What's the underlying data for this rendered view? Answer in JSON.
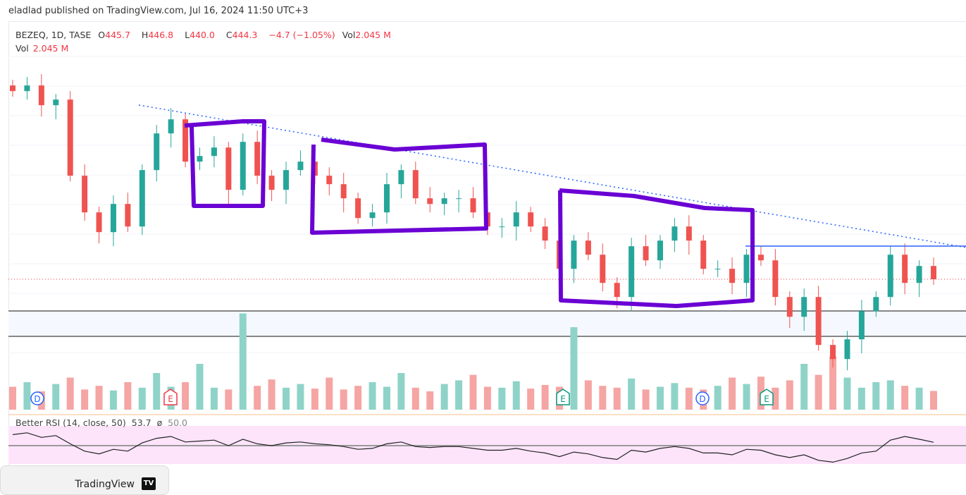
{
  "publish_line": "eladlad published on TradingView.com, Jul 16, 2024 11:50 UTC+3",
  "legend": {
    "symbol": "BEZEQ, 1D, TASE",
    "o_label": "O",
    "open": "445.7",
    "h_label": "H",
    "high": "446.8",
    "l_label": "L",
    "low": "440.0",
    "c_label": "C",
    "close": "444.3",
    "change": "−4.7 (−1.05%)",
    "vol_label": "Vol",
    "vol": "2.045 M",
    "vol2_label": "Vol",
    "vol2": "2.045 M"
  },
  "rsi_legend": {
    "name": "Better RSI (14, close, 50)",
    "value": "53.7",
    "sym": "ø",
    "mid": "50.0"
  },
  "events": [
    {
      "label": "D",
      "color": "#2962ff"
    },
    {
      "label": "E",
      "color": "#f23645"
    },
    {
      "label": "E",
      "color": "#089981"
    },
    {
      "label": "D",
      "color": "#2962ff"
    },
    {
      "label": "E",
      "color": "#089981"
    }
  ],
  "footer": {
    "brand": "TradingView",
    "logo": "TV"
  },
  "colors": {
    "up": "#26a69a",
    "down": "#ef5350",
    "annotation": "#6a00d4",
    "trendline": "#2962ff"
  },
  "chart_data": {
    "type": "candlestick",
    "last_close": 444.3,
    "closes": [
      511,
      513,
      506,
      508,
      481,
      468,
      461,
      471,
      463,
      483,
      496,
      501,
      486,
      488,
      491,
      476,
      493,
      481,
      476,
      483,
      486,
      481,
      478,
      473,
      466,
      468,
      478,
      483,
      473,
      471,
      473,
      473,
      468,
      463,
      463,
      468,
      463,
      458,
      448,
      458,
      453,
      443,
      438,
      456,
      451,
      458,
      463,
      458,
      448,
      448,
      443,
      453,
      451,
      438,
      431,
      438,
      421,
      416,
      423,
      433,
      438,
      453,
      443,
      449,
      444.3
    ],
    "volume_m": [
      2.5,
      3,
      2,
      2.8,
      3.5,
      2.2,
      2.6,
      2.1,
      3,
      2.4,
      4,
      2.5,
      3,
      5,
      2.4,
      2.2,
      10.5,
      2.6,
      3.3,
      2.4,
      2.8,
      2.3,
      3.5,
      2.2,
      2.6,
      3,
      2.5,
      4,
      2.4,
      2,
      2.8,
      3.2,
      3.8,
      2.5,
      2.4,
      3.1,
      2.3,
      2.7,
      2.5,
      9,
      3.2,
      2.6,
      2.4,
      3.4,
      2.2,
      2.5,
      2.9,
      2.4,
      2.2,
      2.6,
      3.5,
      2.8,
      3.6,
      2.4,
      3.2,
      5,
      3.8,
      5.8,
      3.5,
      2.4,
      3,
      3.2,
      2.6,
      2.4,
      2.045
    ],
    "rsi": [
      62,
      64,
      59,
      61,
      52,
      44,
      41,
      46,
      44,
      53,
      58,
      60,
      54,
      55,
      56,
      50,
      57,
      52,
      50,
      53,
      54,
      52,
      51,
      49,
      46,
      47,
      52,
      54,
      49,
      48,
      49,
      49,
      47,
      45,
      45,
      47,
      44,
      42,
      38,
      43,
      41,
      37,
      35,
      45,
      43,
      47,
      49,
      47,
      42,
      42,
      40,
      46,
      45,
      40,
      37,
      40,
      34,
      32,
      36,
      42,
      44,
      56,
      60,
      57,
      53.7
    ],
    "rsi_mid": 50
  }
}
